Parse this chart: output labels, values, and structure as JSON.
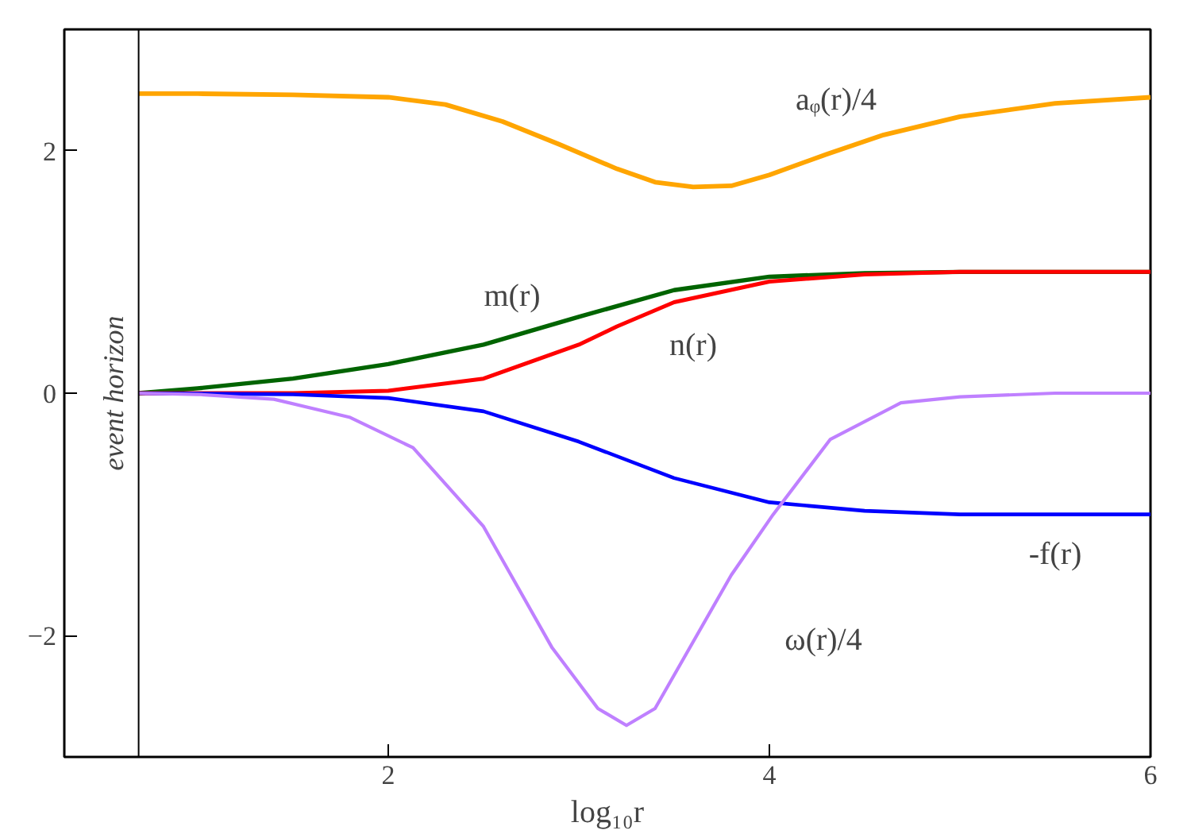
{
  "chart_data": {
    "type": "line",
    "xlabel": "log₁₀r",
    "xlim": [
      0.3,
      6
    ],
    "ylim": [
      -3,
      3
    ],
    "xticks": [
      2,
      4,
      6
    ],
    "yticks": [
      -2,
      0,
      2
    ],
    "grid": false,
    "marker": "none",
    "line_style": "solid",
    "series": [
      {
        "name": "aᵩ(r)/4",
        "color": "#ffa500",
        "x": [
          0.69,
          1.0,
          1.5,
          2.0,
          2.3,
          2.6,
          2.9,
          3.2,
          3.4,
          3.6,
          3.8,
          4.0,
          4.3,
          4.6,
          5.0,
          5.5,
          6.0
        ],
        "values": [
          2.47,
          2.47,
          2.46,
          2.44,
          2.38,
          2.24,
          2.05,
          1.85,
          1.74,
          1.7,
          1.71,
          1.8,
          1.97,
          2.13,
          2.28,
          2.39,
          2.44
        ]
      },
      {
        "name": "m(r)",
        "color": "#006400",
        "x": [
          0.69,
          1.0,
          1.5,
          2.0,
          2.5,
          3.0,
          3.5,
          4.0,
          4.5,
          5.0,
          6.0
        ],
        "values": [
          0,
          0.04,
          0.12,
          0.24,
          0.4,
          0.63,
          0.85,
          0.96,
          0.99,
          1.0,
          1.0
        ]
      },
      {
        "name": "n(r)",
        "color": "#ff0000",
        "x": [
          0.69,
          1.5,
          2.0,
          2.5,
          3.0,
          3.2,
          3.5,
          4.0,
          4.5,
          5.0,
          6.0
        ],
        "values": [
          0,
          0,
          0.02,
          0.12,
          0.4,
          0.55,
          0.75,
          0.92,
          0.98,
          1.0,
          1.0
        ]
      },
      {
        "name": "-f(r)",
        "color": "#0000ff",
        "x": [
          0.69,
          1.5,
          2.0,
          2.5,
          3.0,
          3.5,
          4.0,
          4.5,
          5.0,
          6.0
        ],
        "values": [
          0,
          -0.01,
          -0.04,
          -0.15,
          -0.4,
          -0.7,
          -0.9,
          -0.97,
          -1.0,
          -1.0
        ]
      },
      {
        "name": "ω(r)/4",
        "color": "#bf80ff",
        "x": [
          0.69,
          1.0,
          1.4,
          1.8,
          2.13,
          2.5,
          2.86,
          3.1,
          3.25,
          3.4,
          3.6,
          3.8,
          4.02,
          4.32,
          4.69,
          5.0,
          5.5,
          6.0
        ],
        "values": [
          0,
          -0.01,
          -0.05,
          -0.2,
          -0.45,
          -1.1,
          -2.1,
          -2.6,
          -2.74,
          -2.6,
          -2.05,
          -1.5,
          -1.0,
          -0.38,
          -0.08,
          -0.03,
          0,
          0
        ]
      }
    ],
    "ref_lines": [
      {
        "axis": "x",
        "value": 0.69,
        "label": "event horizon",
        "color": "#000000"
      }
    ]
  }
}
